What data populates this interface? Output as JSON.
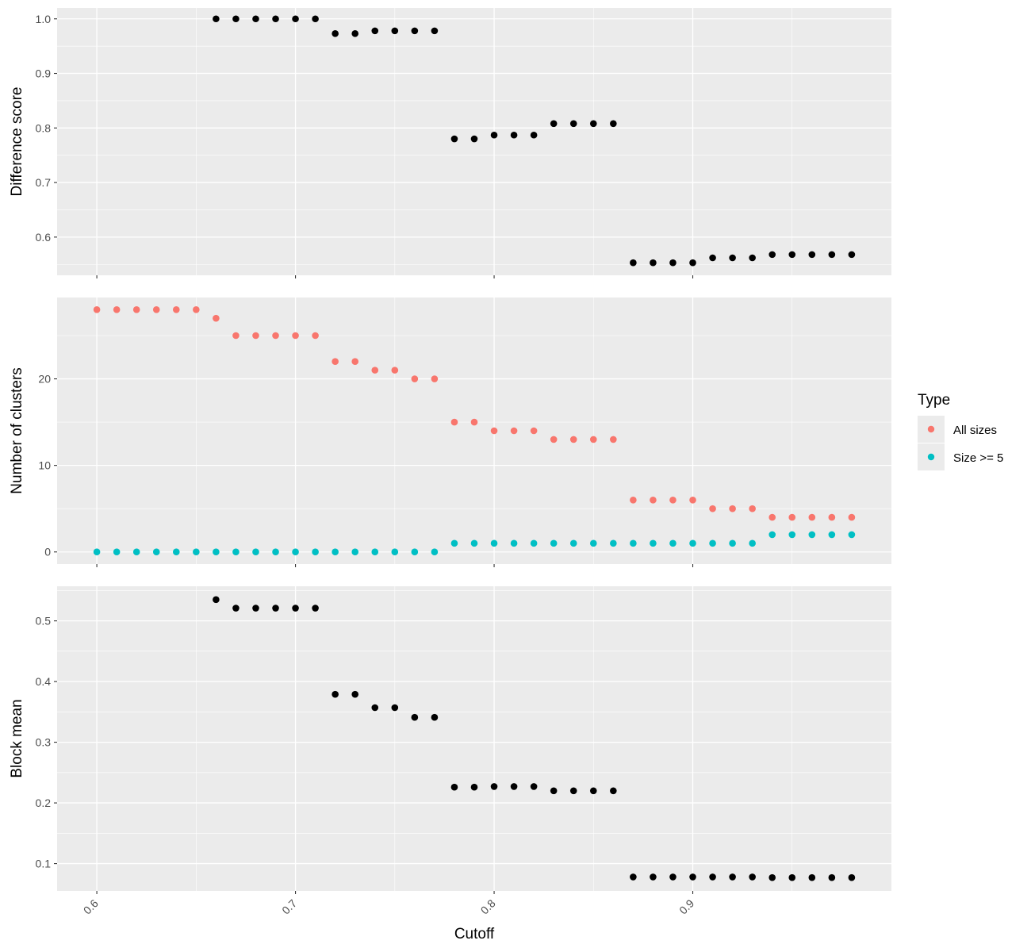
{
  "chart_data": {
    "type": "scatter",
    "x": [
      0.6,
      0.61,
      0.62,
      0.63,
      0.64,
      0.65,
      0.66,
      0.67,
      0.68,
      0.69,
      0.7,
      0.71,
      0.72,
      0.73,
      0.74,
      0.75,
      0.76,
      0.77,
      0.78,
      0.79,
      0.8,
      0.81,
      0.82,
      0.83,
      0.84,
      0.85,
      0.86,
      0.87,
      0.88,
      0.89,
      0.9,
      0.91,
      0.92,
      0.93,
      0.94,
      0.95,
      0.96,
      0.97,
      0.98
    ],
    "xlabel": "Cutoff",
    "xlim": [
      0.58,
      1.0
    ],
    "xticks": [
      0.6,
      0.7,
      0.8,
      0.9
    ],
    "xtick_labels": [
      "0.6",
      "0.7",
      "0.8",
      "0.9"
    ],
    "panels": [
      {
        "ylabel": "Difference score",
        "ylim": [
          0.53,
          1.02
        ],
        "yticks": [
          0.6,
          0.7,
          0.8,
          0.9,
          1.0
        ],
        "ytick_labels": [
          "0.6",
          "0.7",
          "0.8",
          "0.9",
          "1.0"
        ],
        "series": [
          {
            "color": "#000000",
            "values": [
              null,
              null,
              null,
              null,
              null,
              null,
              1.0,
              1.0,
              1.0,
              1.0,
              1.0,
              1.0,
              0.973,
              0.973,
              0.978,
              0.978,
              0.978,
              0.978,
              0.78,
              0.78,
              0.787,
              0.787,
              0.787,
              0.808,
              0.808,
              0.808,
              0.808,
              0.553,
              0.553,
              0.553,
              0.553,
              0.562,
              0.562,
              0.562,
              0.568,
              0.568,
              0.568,
              0.568,
              0.568
            ]
          }
        ]
      },
      {
        "ylabel": "Number of clusters",
        "ylim": [
          -1.4,
          29.4
        ],
        "yticks": [
          0,
          10,
          20
        ],
        "ytick_labels": [
          "0",
          "10",
          "20"
        ],
        "series": [
          {
            "name": "All sizes",
            "color": "#F8766D",
            "values": [
              28,
              28,
              28,
              28,
              28,
              28,
              27,
              25,
              25,
              25,
              25,
              25,
              22,
              22,
              21,
              21,
              20,
              20,
              15,
              15,
              14,
              14,
              14,
              13,
              13,
              13,
              13,
              6,
              6,
              6,
              6,
              5,
              5,
              5,
              4,
              4,
              4,
              4,
              4
            ]
          },
          {
            "name": "Size >= 5",
            "color": "#00BFC4",
            "values": [
              0,
              0,
              0,
              0,
              0,
              0,
              0,
              0,
              0,
              0,
              0,
              0,
              0,
              0,
              0,
              0,
              0,
              0,
              1,
              1,
              1,
              1,
              1,
              1,
              1,
              1,
              1,
              1,
              1,
              1,
              1,
              1,
              1,
              1,
              2,
              2,
              2,
              2,
              2
            ]
          }
        ]
      },
      {
        "ylabel": "Block mean",
        "ylim": [
          0.055,
          0.557
        ],
        "yticks": [
          0.1,
          0.2,
          0.3,
          0.4,
          0.5
        ],
        "ytick_labels": [
          "0.1",
          "0.2",
          "0.3",
          "0.4",
          "0.5"
        ],
        "series": [
          {
            "color": "#000000",
            "values": [
              null,
              null,
              null,
              null,
              null,
              null,
              0.535,
              0.521,
              0.521,
              0.521,
              0.521,
              0.521,
              0.379,
              0.379,
              0.357,
              0.357,
              0.341,
              0.341,
              0.226,
              0.226,
              0.227,
              0.227,
              0.227,
              0.22,
              0.22,
              0.22,
              0.22,
              0.078,
              0.078,
              0.078,
              0.078,
              0.078,
              0.078,
              0.078,
              0.077,
              0.077,
              0.077,
              0.077,
              0.077
            ]
          }
        ]
      }
    ],
    "legend": {
      "title": "Type",
      "position": "right",
      "items": [
        {
          "label": "All sizes",
          "color": "#F8766D"
        },
        {
          "label": "Size >= 5",
          "color": "#00BFC4"
        }
      ]
    },
    "grid": true,
    "panel_background": "#EBEBEB",
    "grid_color": "#FFFFFF"
  }
}
